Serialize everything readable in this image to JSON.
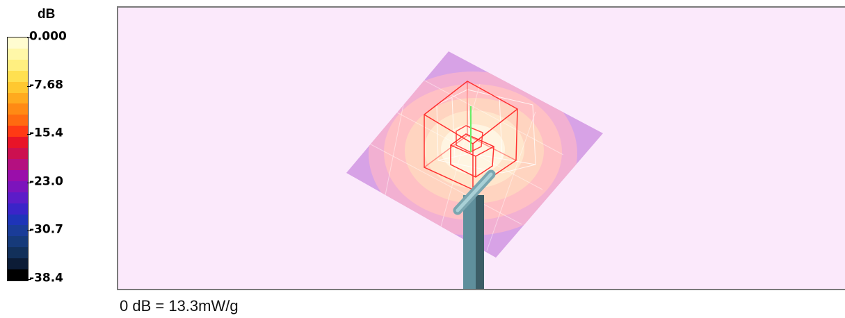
{
  "legend": {
    "unit": "dB",
    "ticks": [
      "0.000",
      "-7.68",
      "-15.4",
      "-23.0",
      "-30.7",
      "-38.4"
    ],
    "colors": [
      "#fffcd0",
      "#fff7a8",
      "#ffef80",
      "#ffe050",
      "#ffc830",
      "#ffaa1e",
      "#ff8a14",
      "#ff6a10",
      "#ff3a14",
      "#e81428",
      "#cc1050",
      "#b41080",
      "#9a0eaa",
      "#7c14bc",
      "#5c1cc8",
      "#3a24c8",
      "#1e34b8",
      "#1a3c98",
      "#163a7a",
      "#12305a",
      "#0c1c36",
      "#000000"
    ]
  },
  "reference_note": "0 dB = 13.3mW/g",
  "scene": {
    "background_color": "#fbe9fb",
    "plane_color": "#d9a6e8",
    "hot_color": "#fff5e0",
    "cube_color": "#ff3a3a",
    "probe_axis_color": "#66ee66",
    "rod_color": "#5a8a96"
  }
}
